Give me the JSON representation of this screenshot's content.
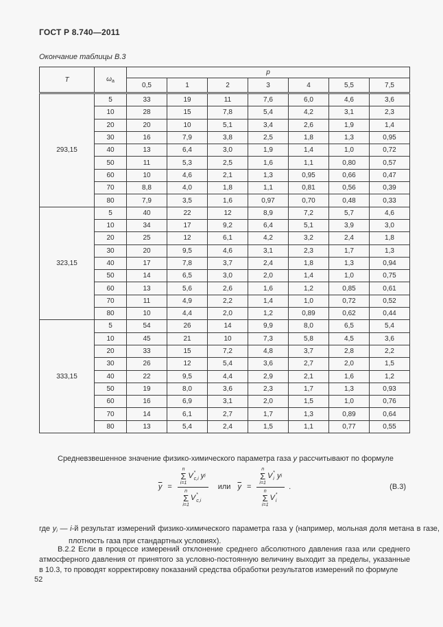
{
  "page": {
    "header": "ГОСТ Р 8.740—2011",
    "table_caption": "Окончание таблицы В.3",
    "page_number": "52"
  },
  "table": {
    "col_t": "T",
    "col_omega": "ω",
    "col_omega_sub": "а",
    "col_p": "p",
    "p_values": [
      "0,5",
      "1",
      "2",
      "3",
      "4",
      "5,5",
      "7,5"
    ],
    "groups": [
      {
        "t": "293,15",
        "rows": [
          {
            "omega": "5",
            "values": [
              "33",
              "19",
              "11",
              "7,6",
              "6,0",
              "4,6",
              "3,6"
            ]
          },
          {
            "omega": "10",
            "values": [
              "28",
              "15",
              "7,8",
              "5,4",
              "4,2",
              "3,1",
              "2,3"
            ]
          },
          {
            "omega": "20",
            "values": [
              "20",
              "10",
              "5,1",
              "3,4",
              "2,6",
              "1,9",
              "1,4"
            ]
          },
          {
            "omega": "30",
            "values": [
              "16",
              "7,9",
              "3,8",
              "2,5",
              "1,8",
              "1,3",
              "0,95"
            ]
          },
          {
            "omega": "40",
            "values": [
              "13",
              "6,4",
              "3,0",
              "1,9",
              "1,4",
              "1,0",
              "0,72"
            ]
          },
          {
            "omega": "50",
            "values": [
              "11",
              "5,3",
              "2,5",
              "1,6",
              "1,1",
              "0,80",
              "0,57"
            ]
          },
          {
            "omega": "60",
            "values": [
              "10",
              "4,6",
              "2,1",
              "1,3",
              "0,95",
              "0,66",
              "0,47"
            ]
          },
          {
            "omega": "70",
            "values": [
              "8,8",
              "4,0",
              "1,8",
              "1,1",
              "0,81",
              "0,56",
              "0,39"
            ]
          },
          {
            "omega": "80",
            "values": [
              "7,9",
              "3,5",
              "1,6",
              "0,97",
              "0,70",
              "0,48",
              "0,33"
            ]
          }
        ]
      },
      {
        "t": "323,15",
        "rows": [
          {
            "omega": "5",
            "values": [
              "40",
              "22",
              "12",
              "8,9",
              "7,2",
              "5,7",
              "4,6"
            ]
          },
          {
            "omega": "10",
            "values": [
              "34",
              "17",
              "9,2",
              "6,4",
              "5,1",
              "3,9",
              "3,0"
            ]
          },
          {
            "omega": "20",
            "values": [
              "25",
              "12",
              "6,1",
              "4,2",
              "3,2",
              "2,4",
              "1,8"
            ]
          },
          {
            "omega": "30",
            "values": [
              "20",
              "9,5",
              "4,6",
              "3,1",
              "2,3",
              "1,7",
              "1,3"
            ]
          },
          {
            "omega": "40",
            "values": [
              "17",
              "7,8",
              "3,7",
              "2,4",
              "1,8",
              "1,3",
              "0,94"
            ]
          },
          {
            "omega": "50",
            "values": [
              "14",
              "6,5",
              "3,0",
              "2,0",
              "1,4",
              "1,0",
              "0,75"
            ]
          },
          {
            "omega": "60",
            "values": [
              "13",
              "5,6",
              "2,6",
              "1,6",
              "1,2",
              "0,85",
              "0,61"
            ]
          },
          {
            "omega": "70",
            "values": [
              "11",
              "4,9",
              "2,2",
              "1,4",
              "1,0",
              "0,72",
              "0,52"
            ]
          },
          {
            "omega": "80",
            "values": [
              "10",
              "4,4",
              "2,0",
              "1,2",
              "0,89",
              "0,62",
              "0,44"
            ]
          }
        ]
      },
      {
        "t": "333,15",
        "rows": [
          {
            "omega": "5",
            "values": [
              "54",
              "26",
              "14",
              "9,9",
              "8,0",
              "6,5",
              "5,4"
            ]
          },
          {
            "omega": "10",
            "values": [
              "45",
              "21",
              "10",
              "7,3",
              "5,8",
              "4,5",
              "3,6"
            ]
          },
          {
            "omega": "20",
            "values": [
              "33",
              "15",
              "7,2",
              "4,8",
              "3,7",
              "2,8",
              "2,2"
            ]
          },
          {
            "omega": "30",
            "values": [
              "26",
              "12",
              "5,4",
              "3,6",
              "2,7",
              "2,0",
              "1,5"
            ]
          },
          {
            "omega": "40",
            "values": [
              "22",
              "9,5",
              "4,4",
              "2,9",
              "2,1",
              "1,6",
              "1,2"
            ]
          },
          {
            "omega": "50",
            "values": [
              "19",
              "8,0",
              "3,6",
              "2,3",
              "1,7",
              "1,3",
              "0,93"
            ]
          },
          {
            "omega": "60",
            "values": [
              "16",
              "6,9",
              "3,1",
              "2,0",
              "1,5",
              "1,0",
              "0,76"
            ]
          },
          {
            "omega": "70",
            "values": [
              "14",
              "6,1",
              "2,7",
              "1,7",
              "1,3",
              "0,89",
              "0,64"
            ]
          },
          {
            "omega": "80",
            "values": [
              "13",
              "5,4",
              "2,4",
              "1,5",
              "1,1",
              "0,77",
              "0,55"
            ]
          }
        ]
      }
    ]
  },
  "text": {
    "para1_pre": "Средневзвешенное значение  физико-химического параметра газа ",
    "para1_y": "у",
    "para1_post": " рассчитывают по формуле",
    "where_lead": "где ",
    "where_var": "y",
    "where_var_sub": "i",
    "where_dash": " — ",
    "where_ivar": "i",
    "where_rest": "-й результат измерений физико-химического параметра газа у (например, мольная доля  метана в газе, плотность газа при стандартных условиях).",
    "para_b22": "В.2.2 Если в процессе измерений отклонение среднего абсолютного давления газа или среднего атмосферного давления от принятого за условно-постоянную величину выходит за пределы, указанные в 10.3, то проводят корректировку показаний средства обработки результатов измерений  по формуле"
  },
  "formula": {
    "ybar": "y",
    "equals": "=",
    "sigma": "Σ",
    "n": "n",
    "i_eq_1": "i=1",
    "V": "V",
    "star": "*",
    "sub_ci": "c,i",
    "sub_i": "i",
    "y_var": "y",
    "y_sub": "i",
    "or_word": "или",
    "period": ".",
    "label": "(В.3)"
  }
}
